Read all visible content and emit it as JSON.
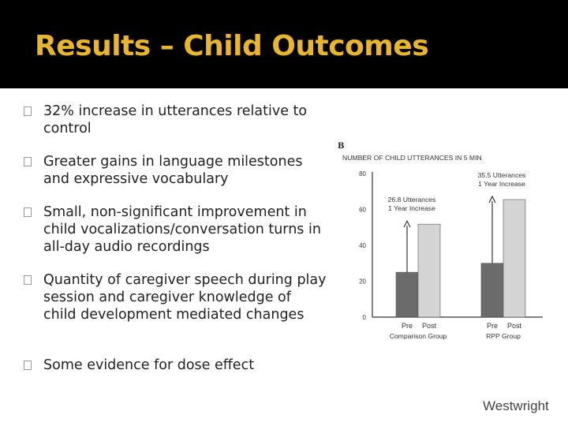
{
  "slide": {
    "title": "Results – Child Outcomes",
    "footer": "Westwright",
    "bullet_glyph": "□",
    "bullets": [
      "32% increase in utterances relative to control",
      "Greater gains in language milestones and expressive vocabulary",
      "Small, non-significant improvement in child vocalizations/conversation turns in all-day audio recordings",
      "Quantity of caregiver speech during play session and caregiver knowledge of child development mediated changes",
      "Some evidence for dose effect"
    ]
  },
  "colors": {
    "title_bg": "#000000",
    "title_text": "#e8b52c",
    "pre_bar": "#6b6b6b",
    "post_bar": "#d4d4d4"
  },
  "chart_data": {
    "type": "bar",
    "panel_label": "B",
    "title": "NUMBER OF CHILD UTTERANCES IN 5 MIN",
    "ylim": [
      0,
      80
    ],
    "yticks": [
      0,
      20,
      40,
      60,
      80
    ],
    "grid": false,
    "groups": [
      {
        "name": "Comparison Group",
        "bars": [
          {
            "label": "Pre",
            "value": 25
          },
          {
            "label": "Post",
            "value": 51.8
          }
        ],
        "annotation": [
          "26.8 Utterances",
          "1 Year Increase"
        ]
      },
      {
        "name": "RPP Group",
        "bars": [
          {
            "label": "Pre",
            "value": 30
          },
          {
            "label": "Post",
            "value": 65.5
          }
        ],
        "annotation": [
          "35.5 Utterances",
          "1 Year Increase"
        ]
      }
    ]
  }
}
